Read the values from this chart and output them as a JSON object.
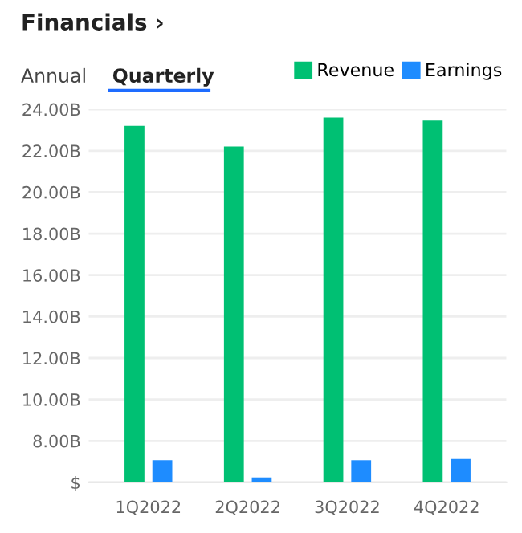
{
  "chart_data": {
    "type": "bar",
    "title": "Financials ›",
    "annotations": [
      "Annual",
      "Quarterly"
    ],
    "categories": [
      "1Q2022",
      "2Q2022",
      "3Q2022",
      "4Q2022"
    ],
    "series": [
      {
        "name": "Revenue",
        "color": "#00c073",
        "values": [
          23.2,
          22.2,
          23.6,
          23.45
        ]
      },
      {
        "name": "Earnings",
        "color": "#1e8cff",
        "values": [
          7.07,
          6.24,
          7.07,
          7.13
        ]
      }
    ],
    "ylim": [
      6,
      24
    ],
    "yticks": [
      {
        "value": 6,
        "label": "$"
      },
      {
        "value": 8,
        "label": "8.00B"
      },
      {
        "value": 10,
        "label": "10.00B"
      },
      {
        "value": 12,
        "label": "12.00B"
      },
      {
        "value": 14,
        "label": "14.00B"
      },
      {
        "value": 16,
        "label": "16.00B"
      },
      {
        "value": 18,
        "label": "18.00B"
      },
      {
        "value": 20,
        "label": "20.00B"
      },
      {
        "value": 22,
        "label": "22.00B"
      },
      {
        "value": 24,
        "label": "24.00B"
      }
    ],
    "grid": "y",
    "legend": "top right"
  }
}
